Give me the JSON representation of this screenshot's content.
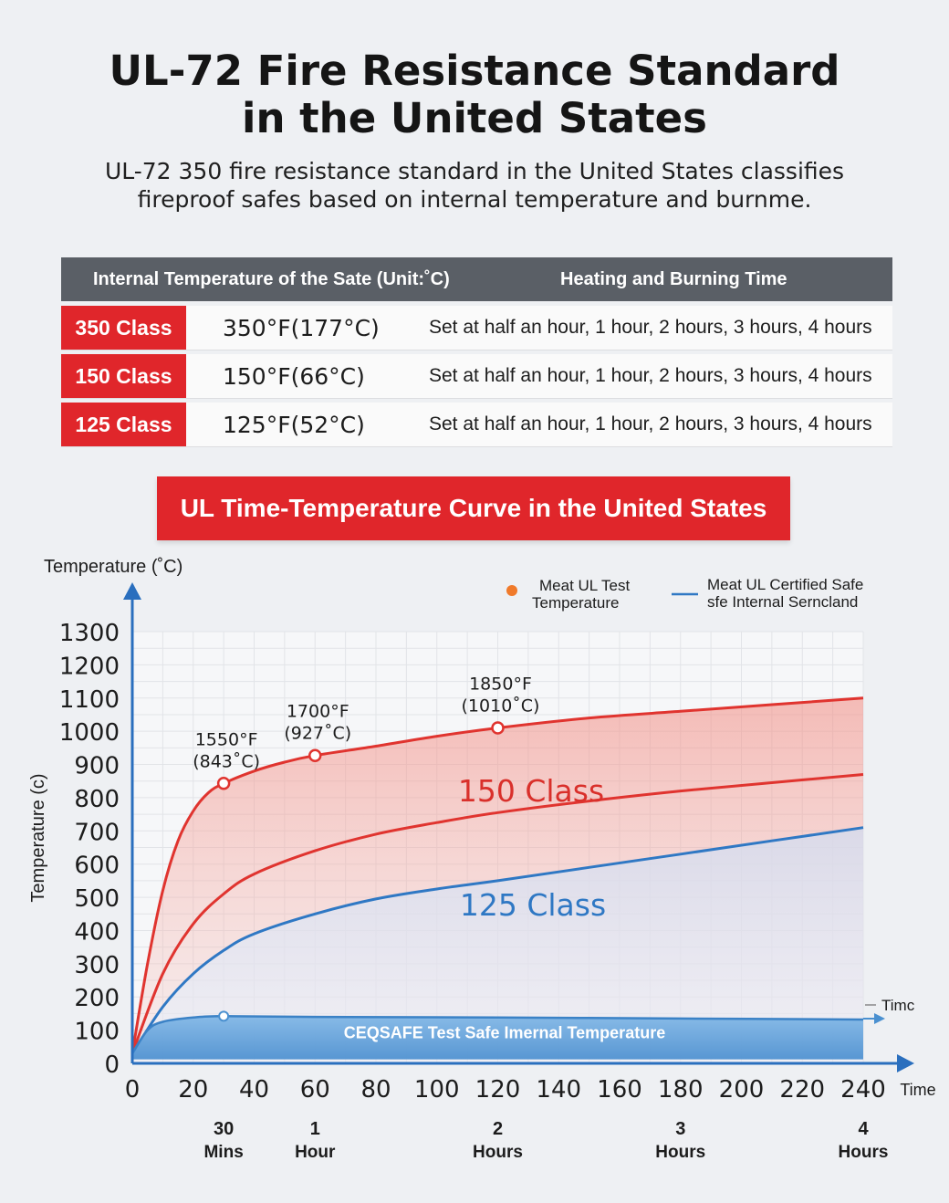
{
  "header": {
    "title_line1": "UL-72 Fire Resistance Standard",
    "title_line2": "in the United States",
    "subtitle_line1": "UL-72 350 fire resistance standard in the United States classifies",
    "subtitle_line2": "fireproof safes based on internal temperature and burnme."
  },
  "table": {
    "headers": [
      "Internal Temperature of the Sate (Unit:˚C)",
      "Heating and Burning Time"
    ],
    "rows": [
      {
        "class": "350 Class",
        "temp": "350°F(177°C)",
        "time": "Set at half an hour, 1 hour, 2 hours, 3 hours, 4 hours"
      },
      {
        "class": "150 Class",
        "temp": "150°F(66°C)",
        "time": "Set at half an hour, 1 hour, 2 hours, 3 hours, 4 hours"
      },
      {
        "class": "125 Class",
        "temp": "125°F(52°C)",
        "time": "Set at half an hour, 1 hour, 2 hours, 3 hours, 4 hours"
      }
    ]
  },
  "banner": {
    "title": "UL Time-Temperature Curve in the United States"
  },
  "colors": {
    "accent_red": "#e0262b",
    "header_gray": "#5a5f66",
    "curve_red": "#e0342f",
    "curve_blue": "#2f78c4"
  },
  "chart_data": {
    "type": "line",
    "ylabel_top": "Temperature (˚C)",
    "ylabel_side": "Temperature (c)",
    "xlabel": "Time",
    "time_arrow_label": "Timc",
    "xlim": [
      0,
      240
    ],
    "ylim": [
      0,
      1300
    ],
    "xticks": [
      0,
      20,
      40,
      60,
      80,
      100,
      120,
      140,
      160,
      180,
      200,
      220,
      240
    ],
    "yticks": [
      0,
      100,
      200,
      300,
      400,
      500,
      600,
      700,
      800,
      900,
      1000,
      1100,
      1200,
      1300
    ],
    "hour_marks": [
      {
        "x": 30,
        "num": "30",
        "unit": "Mins"
      },
      {
        "x": 60,
        "num": "1",
        "unit": "Hour"
      },
      {
        "x": 120,
        "num": "2",
        "unit": "Hours"
      },
      {
        "x": 180,
        "num": "3",
        "unit": "Hours"
      },
      {
        "x": 240,
        "num": "4",
        "unit": "Hours"
      }
    ],
    "legend": [
      {
        "marker": "dot",
        "color": "#f07a2a",
        "line1": "Meat UL Test",
        "line2": "Temperature"
      },
      {
        "marker": "line",
        "color": "#2f78c4",
        "line1": "Meat UL Certified Safe",
        "line2": "sfe Internal Serncland"
      }
    ],
    "series": [
      {
        "name": "",
        "color": "#e0342f",
        "x": [
          0,
          5,
          10,
          15,
          20,
          25,
          30,
          40,
          50,
          60,
          80,
          100,
          120,
          150,
          180,
          210,
          240
        ],
        "y": [
          30,
          300,
          520,
          670,
          760,
          815,
          843,
          880,
          907,
          927,
          955,
          985,
          1010,
          1040,
          1060,
          1080,
          1100
        ]
      },
      {
        "name": "150 Class",
        "color": "#e0342f",
        "x": [
          0,
          10,
          20,
          30,
          40,
          60,
          80,
          100,
          120,
          150,
          180,
          210,
          240
        ],
        "y": [
          30,
          270,
          420,
          510,
          570,
          640,
          690,
          725,
          755,
          790,
          820,
          845,
          870
        ]
      },
      {
        "name": "125 Class",
        "color": "#2f78c4",
        "x": [
          0,
          10,
          20,
          30,
          40,
          60,
          80,
          100,
          120,
          150,
          180,
          210,
          240
        ],
        "y": [
          30,
          170,
          270,
          340,
          390,
          450,
          495,
          525,
          550,
          590,
          630,
          670,
          710
        ]
      },
      {
        "name": "CEQSAFE Test Safe Imernal Temperature",
        "color": "#4a90d0",
        "x": [
          0,
          5,
          10,
          20,
          30,
          60,
          120,
          180,
          240
        ],
        "y": [
          30,
          100,
          125,
          138,
          142,
          140,
          138,
          135,
          132
        ]
      }
    ],
    "annotations": [
      {
        "x": 30,
        "y": 843,
        "line1": "1550°F",
        "line2": "(843˚C)"
      },
      {
        "x": 60,
        "y": 927,
        "line1": "1700°F",
        "line2": "(927˚C)"
      },
      {
        "x": 120,
        "y": 1010,
        "line1": "1850°F",
        "line2": "(1010˚C)"
      }
    ],
    "internal_marker": {
      "x": 30,
      "y": 142
    },
    "band_label": "CEQSAFE Test Safe Imernal Temperature"
  }
}
